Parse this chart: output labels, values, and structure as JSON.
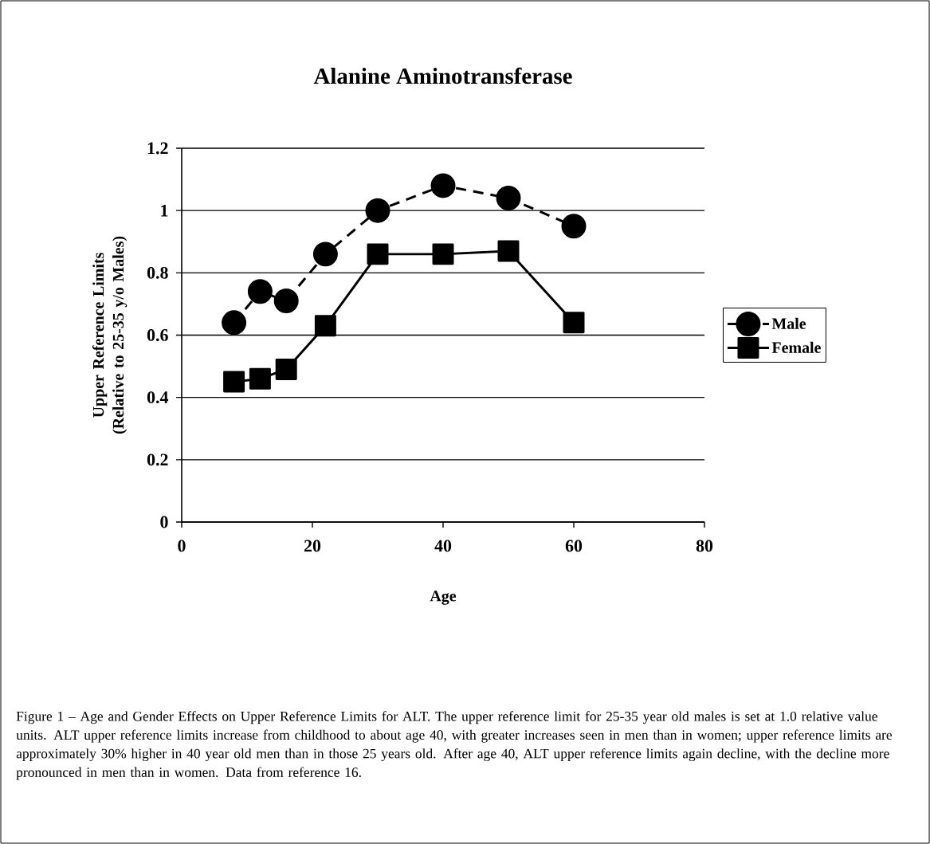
{
  "chart_data": {
    "type": "line",
    "title": "Alanine Aminotransferase",
    "xlabel": "Age",
    "ylabel": "Upper Reference Limits (Relative to 25-35 y/o Males)",
    "xlim": [
      0,
      80
    ],
    "xticks": [
      0,
      20,
      40,
      60,
      80
    ],
    "ylim": [
      0,
      1.2
    ],
    "yticks": [
      0,
      0.2,
      0.4,
      0.6,
      0.8,
      1,
      1.2
    ],
    "grid": "y",
    "legend": "right",
    "series": [
      {
        "name": "Male",
        "color": "#000000",
        "marker": "circle",
        "line_style": "dashed",
        "x": [
          8,
          12,
          16,
          22,
          30,
          40,
          50,
          60
        ],
        "values": [
          0.64,
          0.74,
          0.71,
          0.86,
          1.0,
          1.08,
          1.04,
          0.95
        ]
      },
      {
        "name": "Female",
        "color": "#000000",
        "marker": "square",
        "line_style": "solid",
        "x": [
          8,
          12,
          16,
          22,
          30,
          40,
          50,
          60
        ],
        "values": [
          0.45,
          0.46,
          0.49,
          0.63,
          0.86,
          0.86,
          0.87,
          0.64
        ]
      }
    ],
    "annotations": [
      "Figure 1 – Age and Gender Effects on Upper Reference Limits for ALT.  The upper reference limit for 25-35 year old males is set at 1.0 relative value units.  ALT upper reference limits increase from childhood to about age 40, with greater increases seen in men than in women; upper reference limits are approximately 30% higher in 40 year old men than in those 25 years old.  After age 40, ALT upper reference limits again decline, with the decline more pronounced in men than in women.  Data from reference 16."
    ]
  }
}
